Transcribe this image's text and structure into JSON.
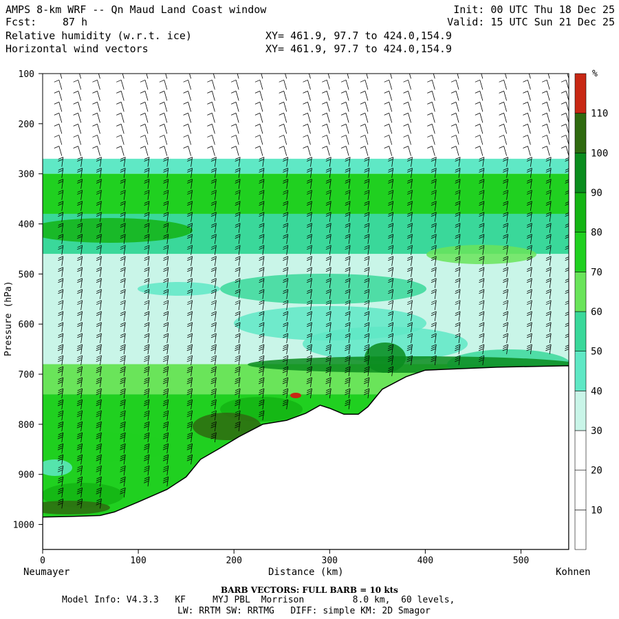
{
  "header": {
    "title": "AMPS 8-km WRF -- Qn Maud Land Coast window",
    "fcst_label": "Fcst:",
    "fcst_value": "87 h",
    "field1": "Relative humidity (w.r.t. ice)",
    "field2": "Horizontal wind vectors",
    "xy1": "XY= 461.9, 97.7 to 424.0,154.9",
    "xy2": "XY= 461.9, 97.7 to 424.0,154.9",
    "init": "Init: 00 UTC Thu 18 Dec 25",
    "valid": "Valid: 15 UTC Sun 21 Dec 25"
  },
  "chart_data": {
    "type": "heatmap",
    "title": "Relative humidity (w.r.t. ice) and horizontal wind vectors, vertical cross-section",
    "xlabel": "Distance (km)",
    "ylabel": "Pressure (hPa)",
    "xlim": [
      0,
      550
    ],
    "ylim": [
      1050,
      100
    ],
    "x_ticks": [
      0,
      100,
      200,
      300,
      400,
      500
    ],
    "y_ticks": [
      100,
      200,
      300,
      400,
      500,
      600,
      700,
      800,
      900,
      1000
    ],
    "left_endpoint": "Neumayer",
    "right_endpoint": "Kohnen",
    "colorbar": {
      "unit": "%",
      "levels": [
        10,
        20,
        30,
        40,
        50,
        60,
        70,
        80,
        90,
        100,
        110
      ],
      "colors": [
        "#ffffff",
        "#ffffff",
        "#ffffff",
        "#c9f5e8",
        "#5fe8c5",
        "#3ad89a",
        "#6ae45a",
        "#20d020",
        "#14b414",
        "#0a8c1e",
        "#2f6a10",
        "#c82814"
      ]
    },
    "terrain_surface": [
      {
        "x": 0,
        "p": 985
      },
      {
        "x": 30,
        "p": 984
      },
      {
        "x": 60,
        "p": 982
      },
      {
        "x": 75,
        "p": 975
      },
      {
        "x": 100,
        "p": 955
      },
      {
        "x": 130,
        "p": 930
      },
      {
        "x": 150,
        "p": 905
      },
      {
        "x": 165,
        "p": 870
      },
      {
        "x": 185,
        "p": 848
      },
      {
        "x": 205,
        "p": 825
      },
      {
        "x": 230,
        "p": 800
      },
      {
        "x": 255,
        "p": 792
      },
      {
        "x": 275,
        "p": 778
      },
      {
        "x": 290,
        "p": 762
      },
      {
        "x": 300,
        "p": 768
      },
      {
        "x": 315,
        "p": 780
      },
      {
        "x": 330,
        "p": 780
      },
      {
        "x": 340,
        "p": 765
      },
      {
        "x": 355,
        "p": 730
      },
      {
        "x": 380,
        "p": 705
      },
      {
        "x": 400,
        "p": 692
      },
      {
        "x": 425,
        "p": 690
      },
      {
        "x": 475,
        "p": 686
      },
      {
        "x": 550,
        "p": 683
      }
    ],
    "rh_bands": [
      {
        "p_top": 270,
        "p_bottom": 300,
        "rh": 45
      },
      {
        "p_top": 300,
        "p_bottom": 380,
        "rh": 75
      },
      {
        "p_top": 380,
        "p_bottom": 460,
        "rh": 55
      },
      {
        "p_top": 460,
        "p_bottom": 680,
        "rh": 35
      },
      {
        "p_top": 680,
        "p_bottom": 740,
        "rh": 60
      },
      {
        "p_top": 740,
        "p_bottom": 990,
        "rh": 75
      }
    ],
    "barb_columns_km": [
      20,
      40,
      60,
      85,
      110,
      130,
      155,
      180,
      205,
      230,
      255,
      280,
      300,
      320,
      340,
      365,
      385,
      410,
      435,
      460,
      485,
      510,
      530,
      550
    ]
  },
  "barb_note": "BARB VECTORS:  FULL BARB = 10 kts",
  "footer": {
    "line1": "Model Info: V4.3.3   KF     MYJ PBL  Morrison         8.0 km,  60 levels,",
    "line2": "LW: RRTM SW: RRTMG   DIFF: simple KM: 2D Smagor"
  }
}
